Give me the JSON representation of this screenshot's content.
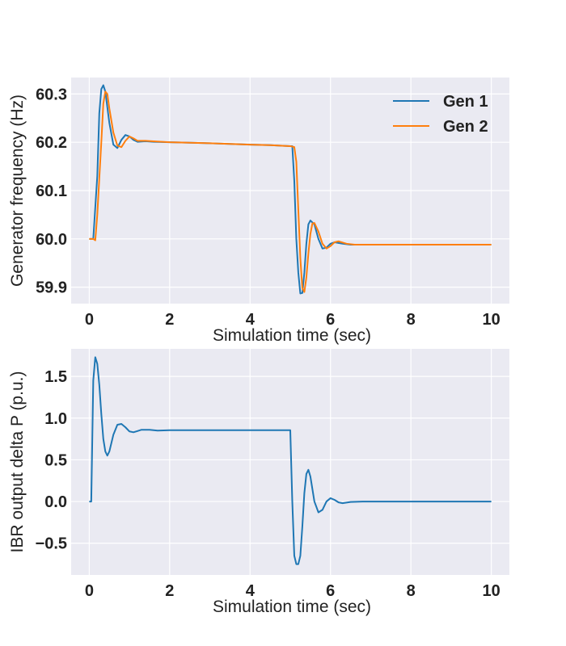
{
  "colors": {
    "gen1": "#1f77b4",
    "gen2": "#ff7f0e",
    "ibr": "#1f77b4",
    "plot_background": "#eaeaf2",
    "grid": "#ffffff"
  },
  "chart_data": [
    {
      "type": "line",
      "title": "",
      "xlabel": "Simulation time (sec)",
      "ylabel": "Generator frequency (Hz)",
      "xlim": [
        -0.45,
        10.45
      ],
      "ylim": [
        59.866,
        60.334
      ],
      "xticks": [
        0,
        2,
        4,
        6,
        8,
        10
      ],
      "yticks": [
        59.9,
        60.0,
        60.1,
        60.2,
        60.3
      ],
      "xtick_labels": [
        "0",
        "2",
        "4",
        "6",
        "8",
        "10"
      ],
      "ytick_labels": [
        "59.9",
        "60.0",
        "60.1",
        "60.2",
        "60.3"
      ],
      "grid": true,
      "legend": "top-right",
      "series": [
        {
          "name": "Gen 1",
          "color": "#1f77b4",
          "points": [
            [
              0.0,
              60.0
            ],
            [
              0.1,
              60.0
            ],
            [
              0.2,
              60.13
            ],
            [
              0.25,
              60.26
            ],
            [
              0.3,
              60.31
            ],
            [
              0.35,
              60.318
            ],
            [
              0.4,
              60.305
            ],
            [
              0.5,
              60.24
            ],
            [
              0.6,
              60.195
            ],
            [
              0.7,
              60.188
            ],
            [
              0.8,
              60.205
            ],
            [
              0.9,
              60.215
            ],
            [
              1.0,
              60.212
            ],
            [
              1.1,
              60.205
            ],
            [
              1.2,
              60.201
            ],
            [
              1.4,
              60.202
            ],
            [
              1.6,
              60.201
            ],
            [
              2.0,
              60.2
            ],
            [
              3.0,
              60.198
            ],
            [
              4.0,
              60.195
            ],
            [
              4.5,
              60.194
            ],
            [
              5.0,
              60.192
            ],
            [
              5.05,
              60.192
            ],
            [
              5.1,
              60.12
            ],
            [
              5.15,
              60.0
            ],
            [
              5.2,
              59.93
            ],
            [
              5.25,
              59.887
            ],
            [
              5.3,
              59.888
            ],
            [
              5.35,
              59.93
            ],
            [
              5.4,
              59.99
            ],
            [
              5.45,
              60.03
            ],
            [
              5.5,
              60.038
            ],
            [
              5.6,
              60.03
            ],
            [
              5.7,
              60.0
            ],
            [
              5.8,
              59.98
            ],
            [
              5.9,
              59.982
            ],
            [
              6.0,
              59.99
            ],
            [
              6.1,
              59.993
            ],
            [
              6.3,
              59.99
            ],
            [
              6.5,
              59.988
            ],
            [
              7.0,
              59.988
            ],
            [
              8.0,
              59.988
            ],
            [
              9.0,
              59.988
            ],
            [
              10.0,
              59.988
            ]
          ]
        },
        {
          "name": "Gen 2",
          "color": "#ff7f0e",
          "points": [
            [
              0.0,
              60.0
            ],
            [
              0.1,
              60.0
            ],
            [
              0.15,
              59.997
            ],
            [
              0.2,
              60.05
            ],
            [
              0.3,
              60.2
            ],
            [
              0.35,
              60.28
            ],
            [
              0.4,
              60.305
            ],
            [
              0.45,
              60.3
            ],
            [
              0.5,
              60.27
            ],
            [
              0.6,
              60.22
            ],
            [
              0.7,
              60.193
            ],
            [
              0.8,
              60.19
            ],
            [
              0.9,
              60.203
            ],
            [
              1.0,
              60.212
            ],
            [
              1.1,
              60.208
            ],
            [
              1.2,
              60.203
            ],
            [
              1.4,
              60.203
            ],
            [
              1.6,
              60.202
            ],
            [
              2.0,
              60.2
            ],
            [
              3.0,
              60.198
            ],
            [
              4.0,
              60.195
            ],
            [
              4.5,
              60.194
            ],
            [
              5.0,
              60.192
            ],
            [
              5.1,
              60.19
            ],
            [
              5.15,
              60.16
            ],
            [
              5.2,
              60.06
            ],
            [
              5.25,
              59.96
            ],
            [
              5.3,
              59.898
            ],
            [
              5.35,
              59.89
            ],
            [
              5.4,
              59.92
            ],
            [
              5.45,
              59.97
            ],
            [
              5.5,
              60.01
            ],
            [
              5.55,
              60.032
            ],
            [
              5.6,
              60.033
            ],
            [
              5.7,
              60.015
            ],
            [
              5.8,
              59.99
            ],
            [
              5.9,
              59.98
            ],
            [
              6.0,
              59.985
            ],
            [
              6.1,
              59.993
            ],
            [
              6.2,
              59.995
            ],
            [
              6.4,
              59.99
            ],
            [
              6.6,
              59.988
            ],
            [
              7.0,
              59.988
            ],
            [
              8.0,
              59.988
            ],
            [
              9.0,
              59.988
            ],
            [
              10.0,
              59.988
            ]
          ]
        }
      ]
    },
    {
      "type": "line",
      "title": "",
      "xlabel": "Simulation time (sec)",
      "ylabel": "IBR output delta P (p.u.)",
      "xlim": [
        -0.45,
        10.45
      ],
      "ylim": [
        -0.88,
        1.83
      ],
      "xticks": [
        0,
        2,
        4,
        6,
        8,
        10
      ],
      "yticks": [
        -0.5,
        0.0,
        0.5,
        1.0,
        1.5
      ],
      "xtick_labels": [
        "0",
        "2",
        "4",
        "6",
        "8",
        "10"
      ],
      "ytick_labels": [
        "−0.5",
        "0.0",
        "0.5",
        "1.0",
        "1.5"
      ],
      "grid": true,
      "series": [
        {
          "color": "#1f77b4",
          "points": [
            [
              0.0,
              0.0
            ],
            [
              0.05,
              0.0
            ],
            [
              0.1,
              1.45
            ],
            [
              0.15,
              1.73
            ],
            [
              0.2,
              1.65
            ],
            [
              0.25,
              1.4
            ],
            [
              0.3,
              1.05
            ],
            [
              0.35,
              0.75
            ],
            [
              0.4,
              0.6
            ],
            [
              0.45,
              0.55
            ],
            [
              0.5,
              0.6
            ],
            [
              0.6,
              0.8
            ],
            [
              0.7,
              0.92
            ],
            [
              0.8,
              0.93
            ],
            [
              0.9,
              0.89
            ],
            [
              1.0,
              0.84
            ],
            [
              1.1,
              0.83
            ],
            [
              1.2,
              0.845
            ],
            [
              1.3,
              0.86
            ],
            [
              1.5,
              0.86
            ],
            [
              1.7,
              0.85
            ],
            [
              2.0,
              0.855
            ],
            [
              3.0,
              0.855
            ],
            [
              4.0,
              0.855
            ],
            [
              5.0,
              0.855
            ],
            [
              5.05,
              0.0
            ],
            [
              5.1,
              -0.65
            ],
            [
              5.15,
              -0.75
            ],
            [
              5.2,
              -0.75
            ],
            [
              5.25,
              -0.65
            ],
            [
              5.3,
              -0.3
            ],
            [
              5.35,
              0.1
            ],
            [
              5.4,
              0.33
            ],
            [
              5.45,
              0.38
            ],
            [
              5.5,
              0.3
            ],
            [
              5.6,
              0.0
            ],
            [
              5.7,
              -0.13
            ],
            [
              5.8,
              -0.1
            ],
            [
              5.9,
              0.0
            ],
            [
              6.0,
              0.04
            ],
            [
              6.1,
              0.02
            ],
            [
              6.2,
              -0.01
            ],
            [
              6.3,
              -0.02
            ],
            [
              6.5,
              -0.005
            ],
            [
              6.8,
              0.0
            ],
            [
              7.0,
              0.0
            ],
            [
              8.0,
              0.0
            ],
            [
              9.0,
              0.0
            ],
            [
              10.0,
              0.0
            ]
          ]
        }
      ]
    }
  ]
}
